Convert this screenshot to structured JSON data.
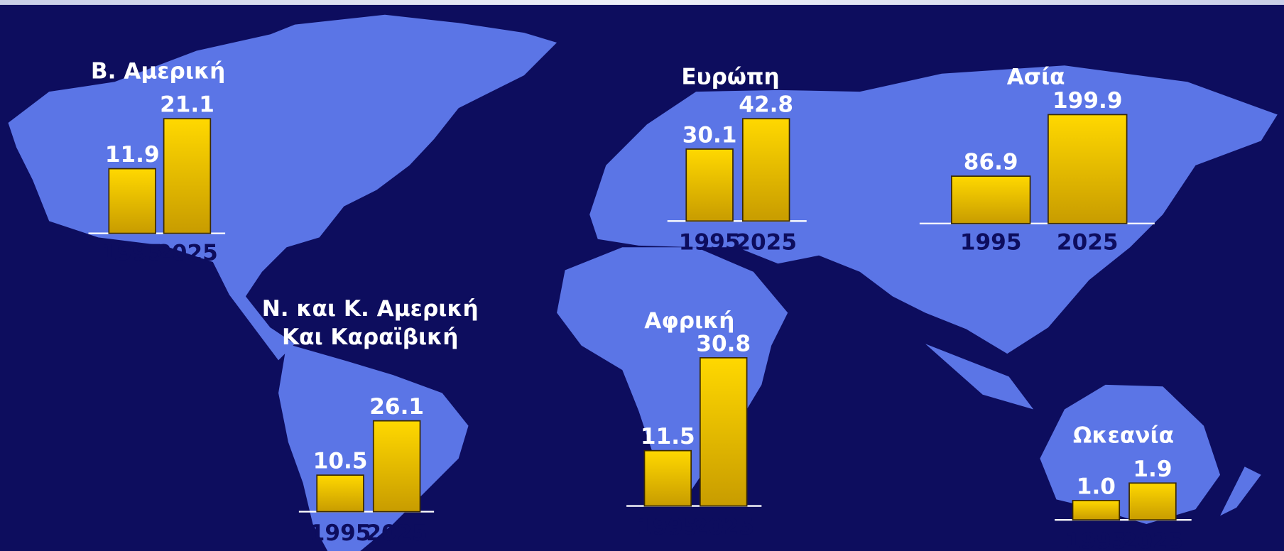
{
  "chart_data": [
    {
      "type": "bar",
      "title": "Β. Αμερική",
      "categories": [
        "1995",
        "2025"
      ],
      "values": [
        11.9,
        21.1
      ],
      "color": "#f5c400"
    },
    {
      "type": "bar",
      "title": "Ευρώπη",
      "categories": [
        "1995",
        "2025"
      ],
      "values": [
        30.1,
        42.8
      ],
      "color": "#f5c400"
    },
    {
      "type": "bar",
      "title": "Ασία",
      "categories": [
        "1995",
        "2025"
      ],
      "values": [
        86.9,
        199.9
      ],
      "color": "#f5c400"
    },
    {
      "type": "bar",
      "title": [
        "Ν. και Κ. Αμερική",
        "Και Καραϊβική"
      ],
      "categories": [
        "1995",
        "2025"
      ],
      "values": [
        10.5,
        26.1
      ],
      "color": "#f5c400"
    },
    {
      "type": "bar",
      "title": "Αφρική",
      "categories": [
        "1995",
        "2025"
      ],
      "values": [
        11.5,
        30.8
      ],
      "color": "#f5c400"
    },
    {
      "type": "bar",
      "title": "Ωκεανία",
      "categories": [
        "1995",
        "2025"
      ],
      "values": [
        1,
        1.9
      ],
      "value_labels": [
        "1.0",
        "1.9"
      ],
      "color": "#f5c400"
    }
  ]
}
